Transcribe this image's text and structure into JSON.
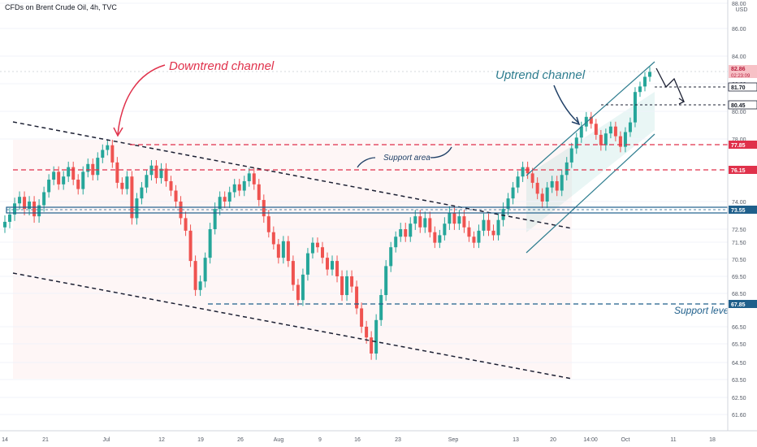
{
  "header": {
    "symbol_text": "CFDs on Brent Crude Oil, 4h, TVC"
  },
  "colors": {
    "up": "#26a69a",
    "down": "#ef5350",
    "downtrend_accent": "#e0314b",
    "uptrend_accent": "#2e7d8f",
    "support_red": "#e0314b",
    "support_blue": "#1f5f8b",
    "axis_text": "#555b66",
    "grid": "#f0f3fa"
  },
  "chart_data": {
    "type": "candlestick",
    "currency_label": "USD",
    "yaxis_ticks": [
      "88.00",
      "86.00",
      "84.00",
      "82.00",
      "80.00",
      "78.00",
      "74.00",
      "72.50",
      "71.50",
      "70.50",
      "69.50",
      "68.50",
      "66.50",
      "65.50",
      "64.50",
      "63.50",
      "62.50",
      "61.60"
    ],
    "xaxis_ticks": [
      "14",
      "21",
      "Jul",
      "12",
      "19",
      "26",
      "Aug",
      "9",
      "16",
      "23",
      "Sep",
      "13",
      "20",
      "14:00",
      "Oct",
      "11",
      "18"
    ],
    "price_badges": [
      {
        "label": "82.86",
        "sub": "02:23:09",
        "kind": "current"
      },
      {
        "label": "81.70",
        "kind": "target"
      },
      {
        "label": "80.45",
        "kind": "target"
      },
      {
        "label": "77.85",
        "kind": "support-red"
      },
      {
        "label": "76.15",
        "kind": "support-red"
      },
      {
        "label": "73.55",
        "kind": "support-blue"
      },
      {
        "label": "67.85",
        "kind": "support-blue"
      }
    ],
    "annotations": {
      "downtrend": "Downtrend channel",
      "uptrend": "Uptrend channel",
      "support_area": "Support area",
      "support_level": "Support level"
    },
    "series_close": [
      72.9,
      73.3,
      73.9,
      74.3,
      73.6,
      74.0,
      73.2,
      73.8,
      74.6,
      75.4,
      75.9,
      75.1,
      75.6,
      76.2,
      75.4,
      74.8,
      75.9,
      76.4,
      75.7,
      76.8,
      77.3,
      77.6,
      76.5,
      75.2,
      74.8,
      75.6,
      73.1,
      74.2,
      74.9,
      75.7,
      76.3,
      75.5,
      76.1,
      75.3,
      74.7,
      74.0,
      73.1,
      72.4,
      70.4,
      68.7,
      69.2,
      70.6,
      72.5,
      73.6,
      74.3,
      74.0,
      74.6,
      75.1,
      74.7,
      75.3,
      75.8,
      75.1,
      74.1,
      73.2,
      72.3,
      71.5,
      70.6,
      71.7,
      70.4,
      69.0,
      68.1,
      69.6,
      70.9,
      71.6,
      71.3,
      70.6,
      69.9,
      70.4,
      69.5,
      68.4,
      69.5,
      68.9,
      67.6,
      66.5,
      65.9,
      65.0,
      66.9,
      68.4,
      70.1,
      71.3,
      72.0,
      72.5,
      72.0,
      72.8,
      73.2,
      72.6,
      73.1,
      72.3,
      71.6,
      72.1,
      72.8,
      73.4,
      72.8,
      73.2,
      72.6,
      72.0,
      71.6,
      72.4,
      73.0,
      72.4,
      72.1,
      73.0,
      73.6,
      74.2,
      74.9,
      75.6,
      76.2,
      75.8,
      75.2,
      74.5,
      74.0,
      74.9,
      75.3,
      74.7,
      75.7,
      76.5,
      77.4,
      78.1,
      78.9,
      79.6,
      79.1,
      78.3,
      77.6,
      78.4,
      78.9,
      78.2,
      77.5,
      78.5,
      79.2,
      81.4,
      81.8,
      82.5,
      82.86
    ]
  }
}
